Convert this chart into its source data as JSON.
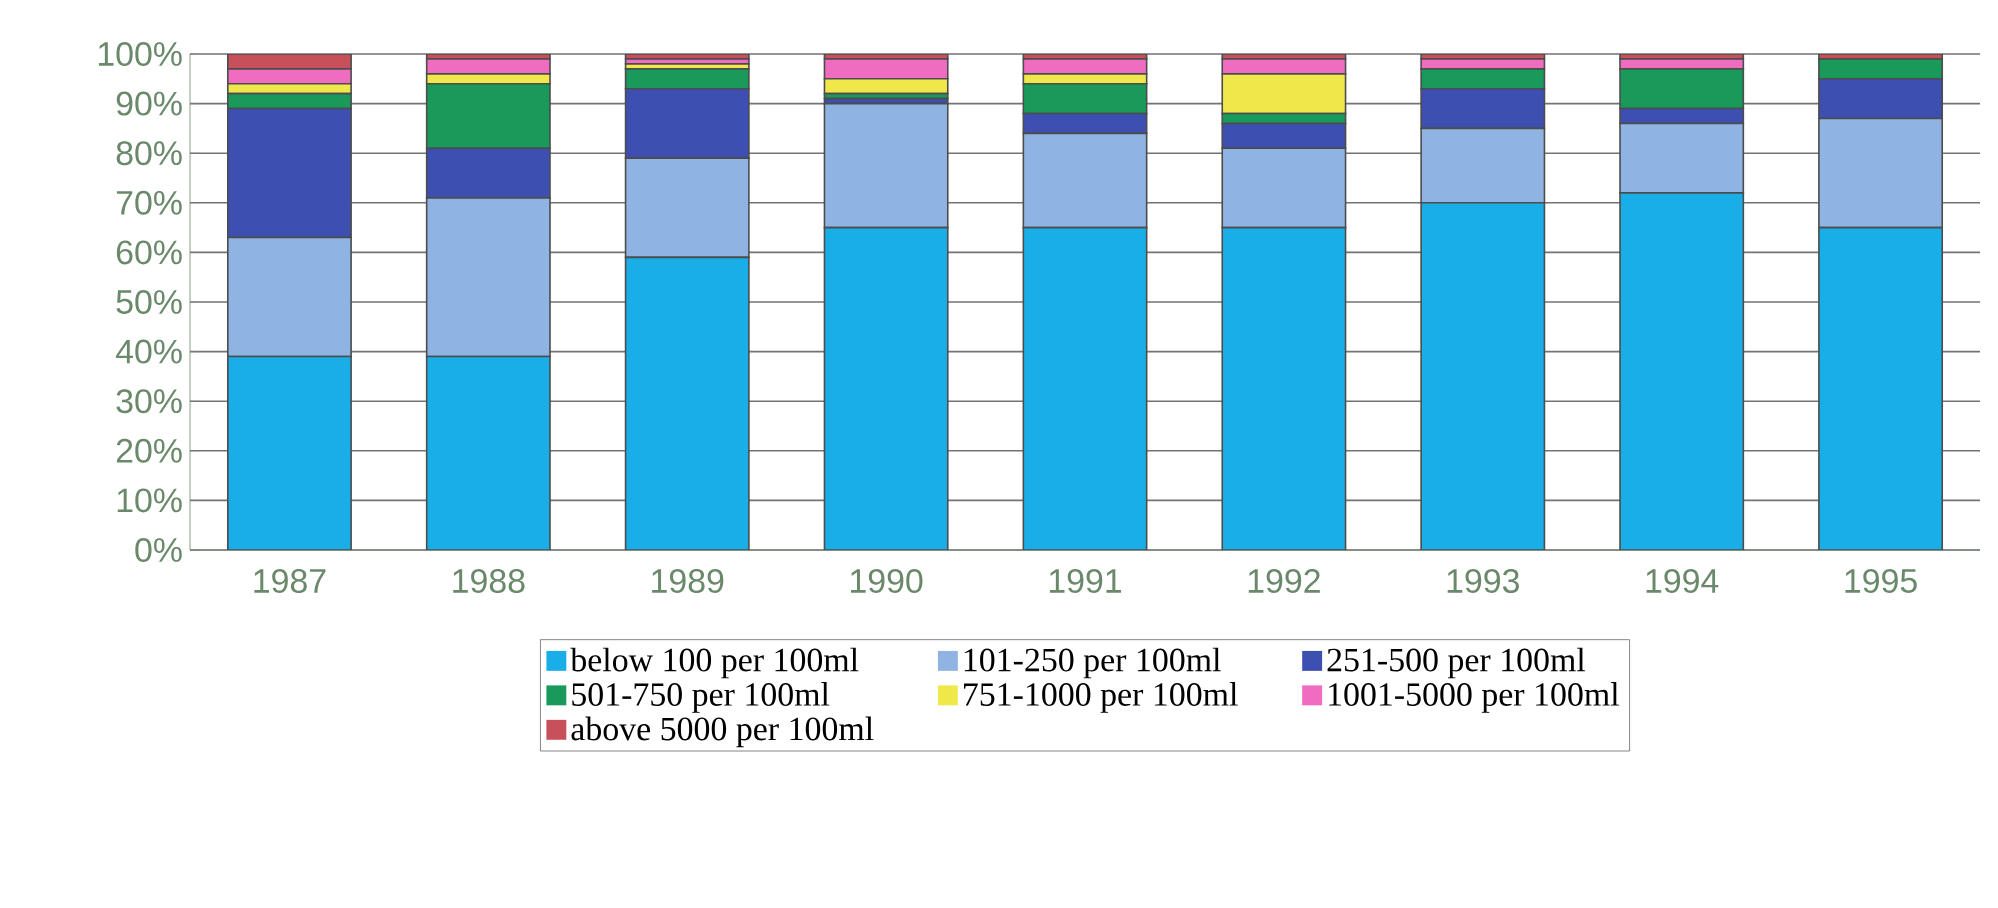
{
  "chart_data": {
    "type": "bar",
    "stacked": true,
    "grid": "y",
    "legend": "bottom",
    "categories": [
      "1987",
      "1988",
      "1989",
      "1990",
      "1991",
      "1992",
      "1993",
      "1994",
      "1995"
    ],
    "ylim": [
      0,
      100
    ],
    "yticks": [
      {
        "value": 0,
        "label": "0%"
      },
      {
        "value": 10,
        "label": "10%"
      },
      {
        "value": 20,
        "label": "20%"
      },
      {
        "value": 30,
        "label": "30%"
      },
      {
        "value": 40,
        "label": "40%"
      },
      {
        "value": 50,
        "label": "50%"
      },
      {
        "value": 60,
        "label": "60%"
      },
      {
        "value": 70,
        "label": "70%"
      },
      {
        "value": 80,
        "label": "80%"
      },
      {
        "value": 90,
        "label": "90%"
      },
      {
        "value": 100,
        "label": "100%"
      }
    ],
    "series": [
      {
        "name": "below 100 per 100ml",
        "color": "#1aaee8",
        "values": [
          39,
          39,
          59,
          65,
          65,
          65,
          70,
          72,
          65
        ]
      },
      {
        "name": "101-250 per 100ml",
        "color": "#8fb4e3",
        "values": [
          24,
          32,
          20,
          25,
          19,
          16,
          15,
          14,
          22
        ]
      },
      {
        "name": "251-500 per 100ml",
        "color": "#3d4fb0",
        "values": [
          26,
          10,
          14,
          1,
          4,
          5,
          8,
          3,
          8
        ]
      },
      {
        "name": "501-750 per 100ml",
        "color": "#1a9a5a",
        "values": [
          3,
          13,
          4,
          1,
          6,
          2,
          4,
          8,
          4
        ]
      },
      {
        "name": "751-1000 per 100ml",
        "color": "#f0e84a",
        "values": [
          2,
          2,
          1,
          3,
          2,
          8,
          0,
          0,
          0
        ]
      },
      {
        "name": "1001-5000 per 100ml",
        "color": "#f06cc0",
        "values": [
          3,
          3,
          1,
          4,
          3,
          3,
          2,
          2,
          0
        ]
      },
      {
        "name": "above 5000 per 100ml",
        "color": "#c8505a",
        "values": [
          3,
          1,
          1,
          1,
          1,
          1,
          1,
          1,
          1
        ]
      }
    ]
  }
}
